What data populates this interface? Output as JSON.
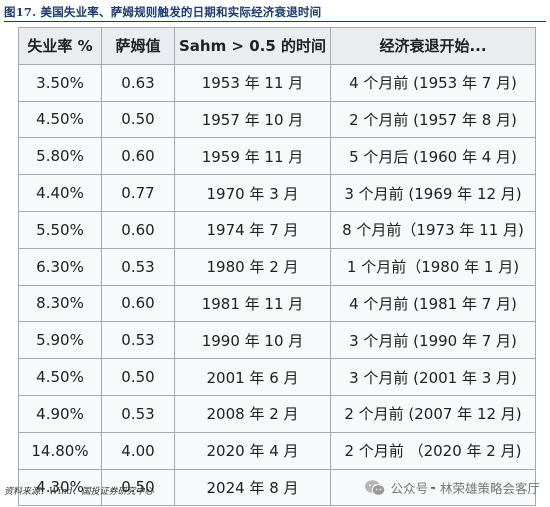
{
  "figure": {
    "title": "图17. 美国失业率、萨姆规则触发的日期和实际经济衰退时间",
    "source": "资料来源：Wind、国投证券研究中心"
  },
  "table": {
    "headers": [
      "失业率 %",
      "萨姆值",
      "Sahm > 0.5 的时间",
      "经济衰退开始..."
    ],
    "rows": [
      [
        "3.50%",
        "0.63",
        "1953 年 11 月",
        "4 个月前 (1953 年 7 月)"
      ],
      [
        "4.50%",
        "0.50",
        "1957 年 10 月",
        "2 个月前 (1957 年 8 月)"
      ],
      [
        "5.80%",
        "0.60",
        "1959 年 11 月",
        "5 个月后 (1960 年 4 月)"
      ],
      [
        "4.40%",
        "0.77",
        "1970 年 3 月",
        "3 个月前 (1969 年 12 月)"
      ],
      [
        "5.50%",
        "0.60",
        "1974 年 7 月",
        "8 个月前（1973 年 11 月)"
      ],
      [
        "6.30%",
        "0.53",
        "1980 年 2 月",
        "1 个月前（1980 年 1 月)"
      ],
      [
        "8.30%",
        "0.60",
        "1981 年 11 月",
        "4 个月前 (1981 年 7 月)"
      ],
      [
        "5.90%",
        "0.53",
        "1990 年 10 月",
        "3 个月前 (1990 年 7 月)"
      ],
      [
        "4.50%",
        "0.50",
        "2001 年 6 月",
        "3 个月前 (2001 年 3 月)"
      ],
      [
        "4.90%",
        "0.53",
        "2008 年 2 月",
        "2 个月前 (2007 年 12 月)"
      ],
      [
        "14.80%",
        "4.00",
        "2020 年 4 月",
        "2 个月前 （2020 年 2 月)"
      ],
      [
        "4.30%",
        "0.50",
        "2024 年 8 月",
        "-"
      ]
    ]
  },
  "watermark": {
    "text": "公众号 · 林荣雄策略会客厅",
    "icon": "wechat-icon"
  }
}
